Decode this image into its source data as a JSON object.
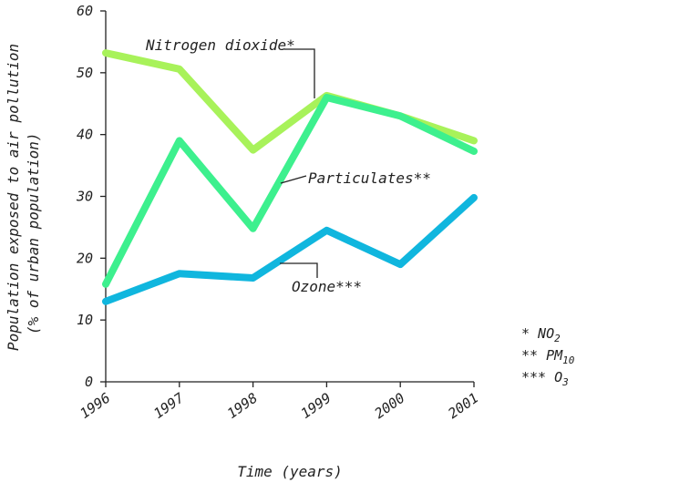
{
  "chart_data": {
    "type": "line",
    "xlabel": "Time (years)",
    "ylabel_line1": "Population exposed to air pollution",
    "ylabel_line2": "(% of urban population)",
    "x": [
      1996,
      1997,
      1998,
      1999,
      2000,
      2001
    ],
    "ylim": [
      0,
      60
    ],
    "yticks": [
      0,
      10,
      20,
      30,
      40,
      50,
      60
    ],
    "grid": false,
    "series": [
      {
        "name": "Nitrogen dioxide*",
        "color": "#a8f25a",
        "values": [
          53.2,
          50.6,
          37.5,
          46.3,
          43.0,
          39.0
        ]
      },
      {
        "name": "Particulates**",
        "color": "#3df08e",
        "values": [
          15.8,
          39.0,
          24.8,
          46.0,
          43.0,
          37.3
        ]
      },
      {
        "name": "Ozone***",
        "color": "#10b6de",
        "values": [
          13.0,
          17.5,
          16.8,
          24.5,
          19.0,
          29.8
        ]
      }
    ],
    "legend": [
      {
        "stars": "* ",
        "base": "NO",
        "sub": "2"
      },
      {
        "stars": "** ",
        "base": "PM",
        "sub": "10"
      },
      {
        "stars": "*** ",
        "base": "O",
        "sub": "3"
      }
    ]
  }
}
